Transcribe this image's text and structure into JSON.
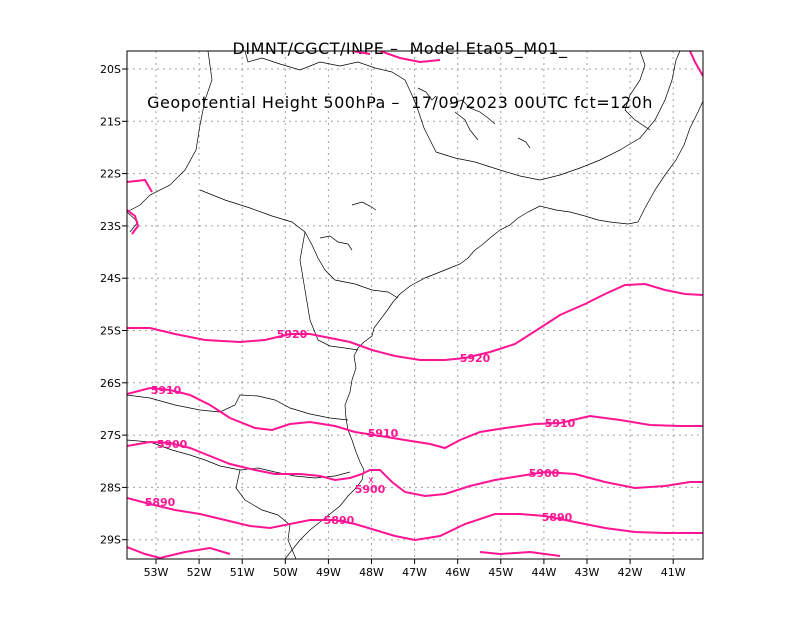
{
  "title": {
    "line1": "DIMNT/CGCT/INPE –  Model Eta05_M01_",
    "line2": "Geopotential Height 500hPa –  17/09/2023 00UTC fct=120h"
  },
  "colors": {
    "contour": "#ff1493",
    "coast": "#000000",
    "grid": "#a0a0a0",
    "frame": "#000000"
  },
  "lat_labels": [
    "20S",
    "21S",
    "22S",
    "23S",
    "24S",
    "25S",
    "26S",
    "27S",
    "28S",
    "29S"
  ],
  "lon_labels": [
    "53W",
    "52W",
    "51W",
    "50W",
    "49W",
    "48W",
    "47W",
    "46W",
    "45W",
    "44W",
    "43W",
    "42W",
    "41W"
  ],
  "contour_labels": [
    "5920",
    "5920",
    "5910",
    "5910",
    "5910",
    "5900",
    "5900",
    "5900",
    "5890",
    "5890",
    "5890"
  ],
  "marker": "x"
}
